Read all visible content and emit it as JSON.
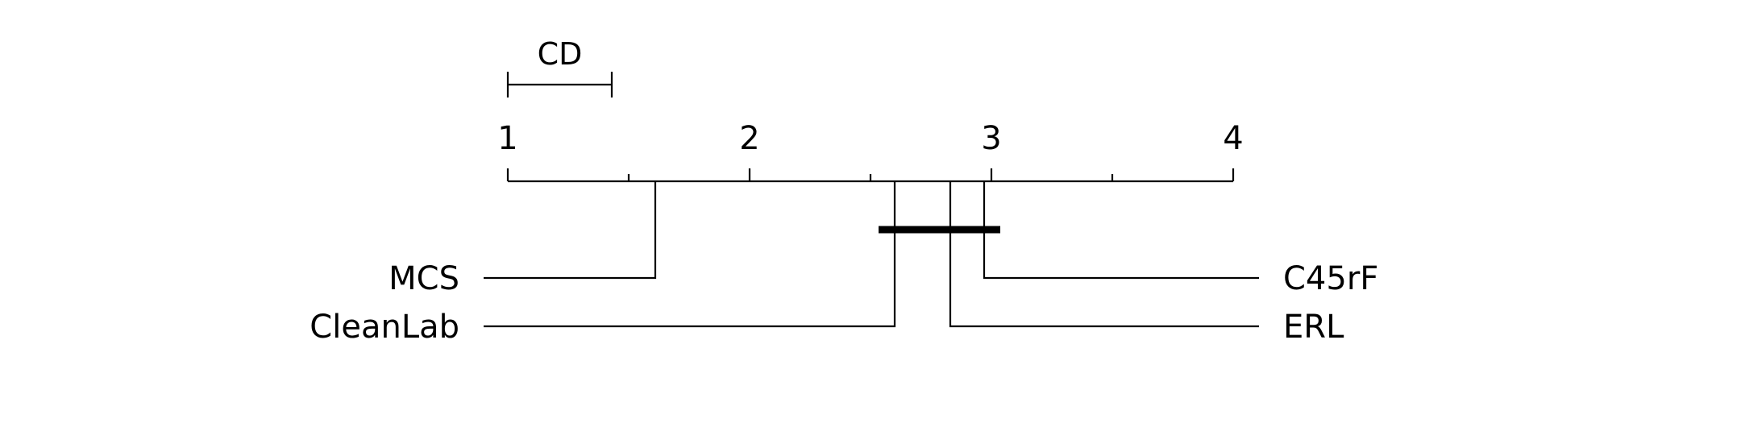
{
  "chart_data": {
    "type": "critical-difference",
    "axis": {
      "min": 1,
      "max": 4,
      "ticks": [
        1,
        1.5,
        2,
        2.5,
        3,
        3.5,
        4
      ],
      "tick_labels": [
        "1",
        "2",
        "3",
        "4"
      ]
    },
    "cd": {
      "label": "CD",
      "value": 0.43
    },
    "methods": [
      {
        "name": "MCS",
        "rank": 1.61,
        "side": "left"
      },
      {
        "name": "CleanLab",
        "rank": 2.6,
        "side": "left"
      },
      {
        "name": "ERL",
        "rank": 2.83,
        "side": "right"
      },
      {
        "name": "C45rF",
        "rank": 2.97,
        "side": "right"
      }
    ],
    "groups": [
      {
        "from": 2.6,
        "to": 2.97
      }
    ],
    "colors": {
      "line": "#000000"
    }
  }
}
